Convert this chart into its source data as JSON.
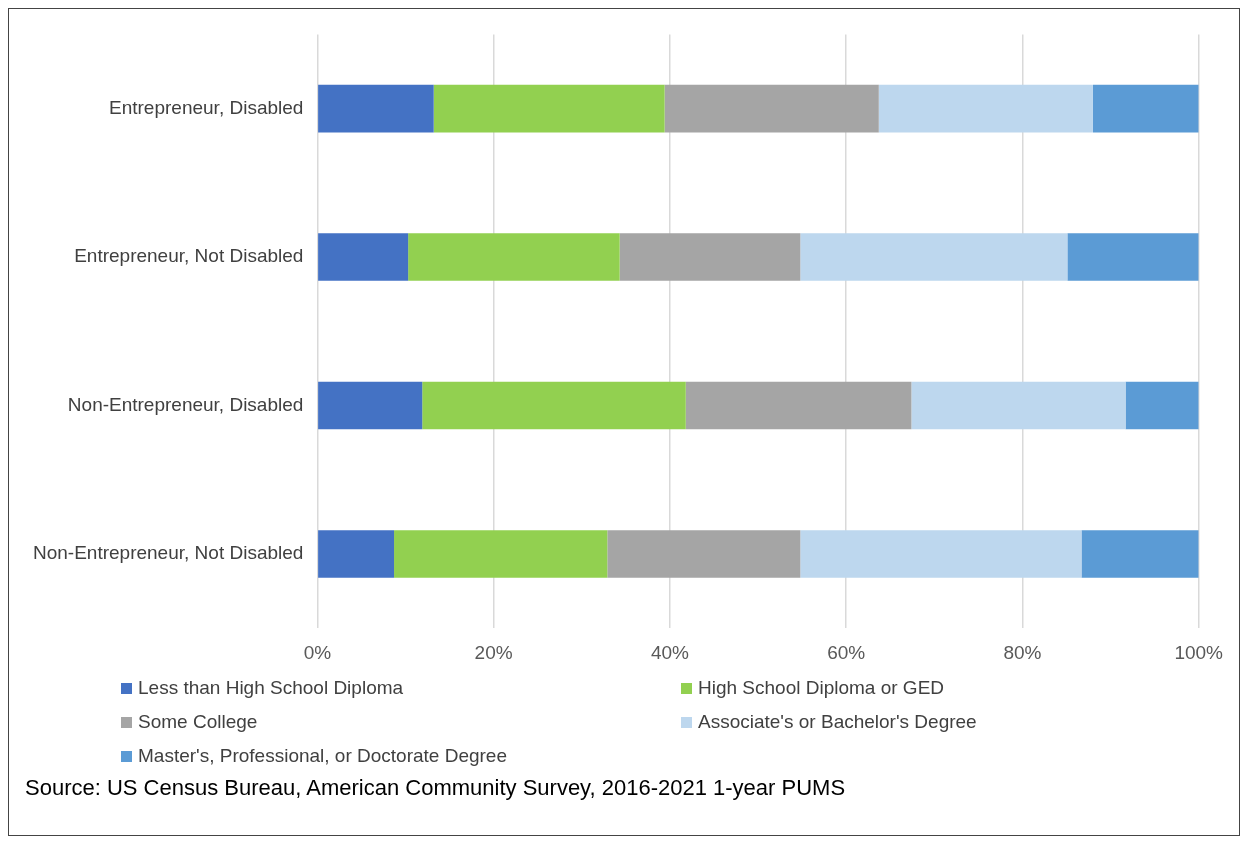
{
  "chart_data": {
    "type": "bar",
    "orientation": "horizontal",
    "stacked": true,
    "categories": [
      "Entrepreneur, Disabled",
      "Entrepreneur, Not Disabled",
      "Non-Entrepreneur, Disabled",
      "Non-Entrepreneur, Not Disabled"
    ],
    "series": [
      {
        "name": "Less than High School Diploma",
        "color": "#4472c4",
        "values": [
          13.2,
          10.3,
          11.9,
          8.7
        ]
      },
      {
        "name": "High School Diploma or GED",
        "color": "#92d050",
        "values": [
          26.2,
          24.0,
          29.9,
          24.2
        ]
      },
      {
        "name": "Some College",
        "color": "#a5a5a5",
        "values": [
          24.3,
          20.5,
          25.6,
          21.9
        ]
      },
      {
        "name": "Associate's or Bachelor's Degree",
        "color": "#bdd7ee",
        "values": [
          24.3,
          30.3,
          24.3,
          31.9
        ]
      },
      {
        "name": "Master's, Professional, or Doctorate Degree",
        "color": "#5b9bd5",
        "values": [
          12.0,
          14.9,
          8.3,
          13.3
        ]
      }
    ],
    "xlim": [
      0,
      100
    ],
    "xticks": [
      {
        "value": 0,
        "label": "0%"
      },
      {
        "value": 20,
        "label": "20%"
      },
      {
        "value": 40,
        "label": "40%"
      },
      {
        "value": 60,
        "label": "60%"
      },
      {
        "value": 80,
        "label": "80%"
      },
      {
        "value": 100,
        "label": "100%"
      }
    ],
    "grid": "x",
    "legend": "bottom",
    "annotations": [
      "Source: US Census Bureau, American Community Survey, 2016-2021 1-year PUMS"
    ]
  }
}
